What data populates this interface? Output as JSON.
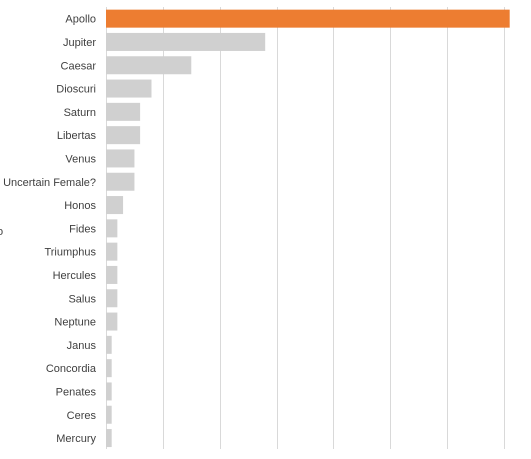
{
  "chart_data": {
    "type": "bar",
    "orientation": "horizontal",
    "categories": [
      "Apollo",
      "Jupiter",
      "Caesar",
      "Dioscuri",
      "Saturn",
      "Libertas",
      "Venus",
      "Uncertain Female?",
      "Honos",
      "Fides",
      "Triumphus",
      "Hercules",
      "Salus",
      "Neptune",
      "Janus",
      "Concordia",
      "Penates",
      "Ceres",
      "Mercury"
    ],
    "values": [
      71,
      28,
      15,
      8,
      6,
      6,
      5,
      5,
      3,
      2,
      2,
      2,
      2,
      2,
      1,
      1,
      1,
      1,
      1
    ],
    "xlim": [
      0,
      70
    ],
    "x_gridlines": [
      0,
      10,
      20,
      30,
      40,
      50,
      60,
      70
    ],
    "grid": true,
    "legend": "none",
    "colors": {
      "highlight": "#ED7D31",
      "default": "#D0D0D0",
      "grid": "#D9D9D9",
      "text": "#404040"
    },
    "highlighted_category": "Apollo",
    "edge_fragment": "o"
  }
}
